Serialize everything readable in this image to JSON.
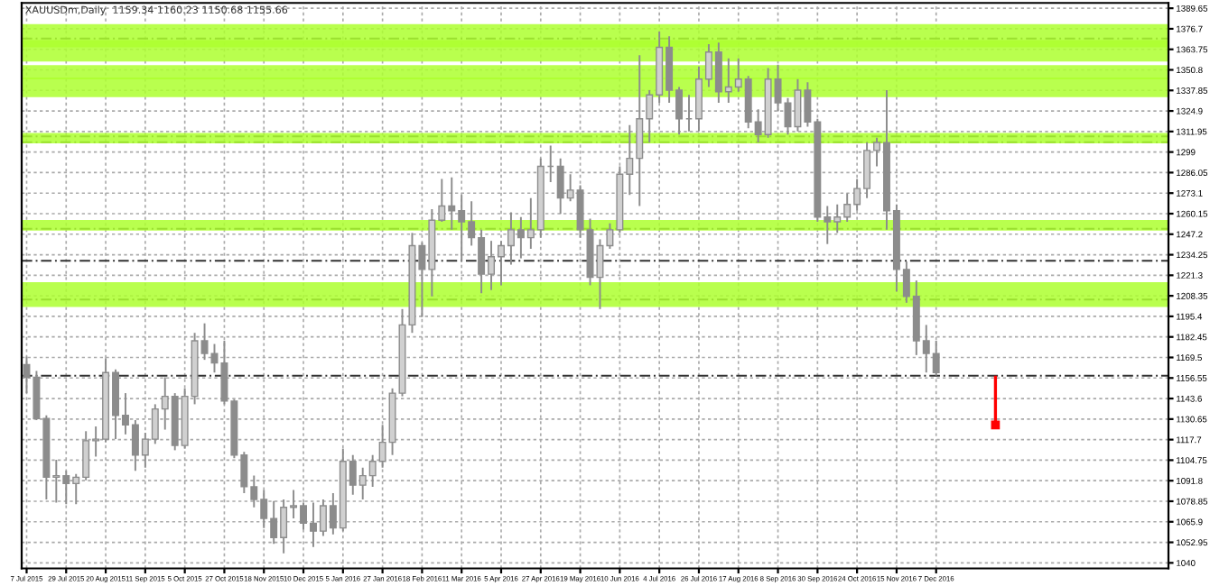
{
  "chart_data": {
    "type": "candlestick",
    "title": "XAUUSDm,Daily  1159.34 1160.23 1150.68 1155.66",
    "categories": [
      "7 Jul 2015",
      null,
      null,
      null,
      "29 Jul 2015",
      null,
      null,
      null,
      "20 Aug 2015",
      null,
      null,
      null,
      "11 Sep 2015",
      null,
      null,
      null,
      "5 Oct 2015",
      null,
      null,
      null,
      "27 Oct 2015",
      null,
      null,
      null,
      "18 Nov 2015",
      null,
      null,
      null,
      "10 Dec 2015",
      null,
      null,
      null,
      "5 Jan 2016",
      null,
      null,
      null,
      "27 Jan 2016",
      null,
      null,
      null,
      "18 Feb 2016",
      null,
      null,
      null,
      "11 Mar 2016",
      null,
      null,
      null,
      "5 Apr 2016",
      null,
      null,
      null,
      "27 Apr 2016",
      null,
      null,
      null,
      "19 May 2016",
      null,
      null,
      null,
      "10 Jun 2016",
      null,
      null,
      null,
      "4 Jul 2016",
      null,
      null,
      null,
      "26 Jul 2016",
      null,
      null,
      null,
      "17 Aug 2016",
      null,
      null,
      null,
      "8 Sep 2016",
      null,
      null,
      null,
      "30 Sep 2016",
      null,
      null,
      null,
      "24 Oct 2016",
      null,
      null,
      null,
      "15 Nov 2016",
      null,
      null,
      null,
      "7 Dec 2016",
      null,
      null,
      null,
      null,
      null,
      null,
      null,
      null,
      null,
      null,
      null,
      null,
      null,
      null,
      null,
      null,
      null,
      null,
      null,
      null,
      null,
      null,
      null
    ],
    "color": "#8c8c8c",
    "ohlc": [
      [
        1165,
        1170,
        1147,
        1157
      ],
      [
        1157,
        1161,
        1130,
        1131
      ],
      [
        1131,
        1133,
        1080,
        1094
      ],
      [
        1094,
        1105,
        1078,
        1095
      ],
      [
        1095,
        1098,
        1077,
        1090
      ],
      [
        1090,
        1096,
        1077,
        1094
      ],
      [
        1094,
        1123,
        1092,
        1117
      ],
      [
        1117,
        1126,
        1107,
        1118
      ],
      [
        1118,
        1169,
        1116,
        1160
      ],
      [
        1160,
        1162,
        1118,
        1133
      ],
      [
        1133,
        1147,
        1121,
        1127
      ],
      [
        1127,
        1130,
        1098,
        1108
      ],
      [
        1108,
        1122,
        1100,
        1118
      ],
      [
        1118,
        1140,
        1115,
        1137
      ],
      [
        1137,
        1157,
        1124,
        1145
      ],
      [
        1145,
        1147,
        1111,
        1114
      ],
      [
        1114,
        1150,
        1112,
        1145
      ],
      [
        1145,
        1185,
        1140,
        1180
      ],
      [
        1180,
        1191,
        1168,
        1172
      ],
      [
        1172,
        1178,
        1160,
        1166
      ],
      [
        1166,
        1180,
        1140,
        1142
      ],
      [
        1142,
        1143,
        1106,
        1108
      ],
      [
        1108,
        1110,
        1084,
        1088
      ],
      [
        1088,
        1095,
        1075,
        1080
      ],
      [
        1080,
        1086,
        1062,
        1068
      ],
      [
        1068,
        1079,
        1052,
        1056
      ],
      [
        1056,
        1080,
        1046,
        1075
      ],
      [
        1075,
        1086,
        1068,
        1076
      ],
      [
        1076,
        1078,
        1061,
        1065
      ],
      [
        1065,
        1078,
        1050,
        1060
      ],
      [
        1060,
        1080,
        1057,
        1076
      ],
      [
        1076,
        1084,
        1058,
        1062
      ],
      [
        1062,
        1112,
        1060,
        1104
      ],
      [
        1104,
        1108,
        1083,
        1089
      ],
      [
        1089,
        1100,
        1080,
        1095
      ],
      [
        1095,
        1108,
        1088,
        1104
      ],
      [
        1104,
        1127,
        1100,
        1116
      ],
      [
        1116,
        1150,
        1108,
        1147
      ],
      [
        1147,
        1200,
        1145,
        1190
      ],
      [
        1190,
        1248,
        1185,
        1240
      ],
      [
        1240,
        1242,
        1195,
        1225
      ],
      [
        1225,
        1263,
        1208,
        1256
      ],
      [
        1256,
        1282,
        1255,
        1265
      ],
      [
        1265,
        1283,
        1250,
        1262
      ],
      [
        1262,
        1272,
        1230,
        1255
      ],
      [
        1255,
        1268,
        1240,
        1245
      ],
      [
        1245,
        1250,
        1210,
        1222
      ],
      [
        1222,
        1243,
        1212,
        1233
      ],
      [
        1233,
        1243,
        1215,
        1240
      ],
      [
        1240,
        1261,
        1228,
        1250
      ],
      [
        1250,
        1258,
        1232,
        1245
      ],
      [
        1245,
        1270,
        1238,
        1250
      ],
      [
        1250,
        1295,
        1245,
        1290
      ],
      [
        1290,
        1303,
        1280,
        1290
      ],
      [
        1290,
        1295,
        1260,
        1270
      ],
      [
        1270,
        1285,
        1268,
        1275
      ],
      [
        1275,
        1278,
        1245,
        1250
      ],
      [
        1250,
        1257,
        1215,
        1220
      ],
      [
        1220,
        1244,
        1200,
        1240
      ],
      [
        1240,
        1254,
        1238,
        1250
      ],
      [
        1250,
        1290,
        1248,
        1285
      ],
      [
        1285,
        1316,
        1272,
        1295
      ],
      [
        1295,
        1360,
        1265,
        1320
      ],
      [
        1320,
        1338,
        1305,
        1335
      ],
      [
        1335,
        1375,
        1330,
        1365
      ],
      [
        1365,
        1372,
        1330,
        1338
      ],
      [
        1338,
        1340,
        1310,
        1320
      ],
      [
        1320,
        1335,
        1312,
        1320
      ],
      [
        1320,
        1353,
        1312,
        1345
      ],
      [
        1345,
        1367,
        1340,
        1362
      ],
      [
        1362,
        1368,
        1330,
        1337
      ],
      [
        1337,
        1358,
        1330,
        1340
      ],
      [
        1340,
        1358,
        1337,
        1345
      ],
      [
        1345,
        1347,
        1314,
        1318
      ],
      [
        1318,
        1326,
        1305,
        1310
      ],
      [
        1310,
        1352,
        1308,
        1345
      ],
      [
        1345,
        1354,
        1325,
        1330
      ],
      [
        1330,
        1333,
        1310,
        1315
      ],
      [
        1315,
        1345,
        1312,
        1338
      ],
      [
        1338,
        1343,
        1315,
        1318
      ],
      [
        1318,
        1320,
        1255,
        1258
      ],
      [
        1258,
        1265,
        1241,
        1255
      ],
      [
        1255,
        1266,
        1248,
        1258
      ],
      [
        1258,
        1273,
        1255,
        1266
      ],
      [
        1266,
        1282,
        1262,
        1276
      ],
      [
        1276,
        1305,
        1270,
        1300
      ],
      [
        1300,
        1308,
        1290,
        1305
      ],
      [
        1305,
        1338,
        1250,
        1262
      ],
      [
        1262,
        1266,
        1211,
        1225
      ],
      [
        1225,
        1230,
        1204,
        1208
      ],
      [
        1208,
        1218,
        1171,
        1180
      ],
      [
        1180,
        1190,
        1160,
        1172
      ],
      [
        1172,
        1180,
        1158,
        1160
      ],
      null,
      null,
      null,
      null,
      null,
      null,
      null,
      null,
      null,
      null,
      null,
      null,
      null,
      null,
      null,
      null,
      null,
      null,
      null,
      null,
      null,
      null,
      null
    ],
    "series": [
      {
        "type": "scatter",
        "color": "#ff0000",
        "marker": "square",
        "values": [
          null,
          null,
          null,
          null,
          null,
          null,
          null,
          null,
          null,
          null,
          null,
          null,
          null,
          null,
          null,
          null,
          null,
          null,
          null,
          null,
          null,
          null,
          null,
          null,
          null,
          null,
          null,
          null,
          null,
          null,
          null,
          null,
          null,
          null,
          null,
          null,
          null,
          null,
          null,
          null,
          null,
          null,
          null,
          null,
          null,
          null,
          null,
          null,
          null,
          null,
          null,
          null,
          null,
          null,
          null,
          null,
          null,
          null,
          null,
          null,
          null,
          null,
          null,
          null,
          null,
          null,
          null,
          null,
          null,
          null,
          null,
          null,
          null,
          null,
          null,
          null,
          null,
          null,
          null,
          null,
          null,
          null,
          null,
          null,
          null,
          null,
          null,
          null,
          null,
          null,
          null,
          null,
          null,
          null,
          null,
          null,
          null,
          null,
          1127,
          null,
          null,
          null,
          null,
          null,
          null,
          null,
          null,
          null,
          null,
          null,
          null,
          null,
          null,
          null,
          null,
          null
        ],
        "errors": [
          null,
          null,
          null,
          null,
          null,
          null,
          null,
          null,
          null,
          null,
          null,
          null,
          null,
          null,
          null,
          null,
          null,
          null,
          null,
          null,
          null,
          null,
          null,
          null,
          null,
          null,
          null,
          null,
          null,
          null,
          null,
          null,
          null,
          null,
          null,
          null,
          null,
          null,
          null,
          null,
          null,
          null,
          null,
          null,
          null,
          null,
          null,
          null,
          null,
          null,
          null,
          null,
          null,
          null,
          null,
          null,
          null,
          null,
          null,
          null,
          null,
          null,
          null,
          null,
          null,
          null,
          null,
          null,
          null,
          null,
          null,
          null,
          null,
          null,
          null,
          null,
          null,
          null,
          null,
          null,
          null,
          null,
          null,
          null,
          null,
          null,
          null,
          null,
          null,
          null,
          null,
          null,
          null,
          null,
          null,
          null,
          null,
          null,
          [
            1127,
            1158
          ],
          null,
          null,
          null,
          null,
          null,
          null,
          null,
          null,
          null,
          null,
          null,
          null,
          null,
          null,
          null,
          null,
          null
        ]
      }
    ],
    "ylim": [
      1036.5,
      1393
    ],
    "yticks": [
      1389.65,
      1376.7,
      1363.75,
      1350.8,
      1337.85,
      1324.9,
      1311.95,
      1299,
      1286.05,
      1273.1,
      1260.15,
      1247.2,
      1234.25,
      1221.3,
      1208.35,
      1195.4,
      1182.45,
      1169.5,
      1156.55,
      1143.6,
      1130.65,
      1117.7,
      1104.75,
      1091.8,
      1078.85,
      1065.9,
      1052.95,
      1040
    ],
    "grid": true,
    "ref_lines": [
      {
        "axis": "y",
        "value": 1370.6,
        "color": "#333333",
        "line_style": "dashed"
      },
      {
        "axis": "y",
        "value": 1308.9,
        "color": "#333333",
        "line_style": "dashed"
      },
      {
        "axis": "y",
        "value": 1305.2,
        "color": "#333333",
        "line_style": "dashed"
      },
      {
        "axis": "y",
        "value": 1250.6,
        "color": "#333333",
        "line_style": "dashed"
      },
      {
        "axis": "y",
        "value": 1230.5,
        "color": "#333333",
        "line_style": "dashed"
      },
      {
        "axis": "y",
        "value": 1206,
        "color": "#333333",
        "line_style": "dashed"
      },
      {
        "axis": "y",
        "value": 1158,
        "color": "#333333",
        "line_style": "dashed"
      }
    ],
    "bands": [
      {
        "axis": "y",
        "from": 1365,
        "to": 1379.6,
        "color": "#adff2f"
      },
      {
        "axis": "y",
        "from": 1356,
        "to": 1369.5,
        "color": "#adff2f"
      },
      {
        "axis": "y",
        "from": 1344.8,
        "to": 1353.8,
        "color": "#adff2f"
      },
      {
        "axis": "y",
        "from": 1333.6,
        "to": 1346,
        "color": "#adff2f"
      },
      {
        "axis": "y",
        "from": 1304.5,
        "to": 1311,
        "color": "#adff2f"
      },
      {
        "axis": "y",
        "from": 1249.5,
        "to": 1256.2,
        "color": "#adff2f"
      },
      {
        "axis": "y",
        "from": 1201.3,
        "to": 1217,
        "color": "#adff2f"
      }
    ]
  }
}
